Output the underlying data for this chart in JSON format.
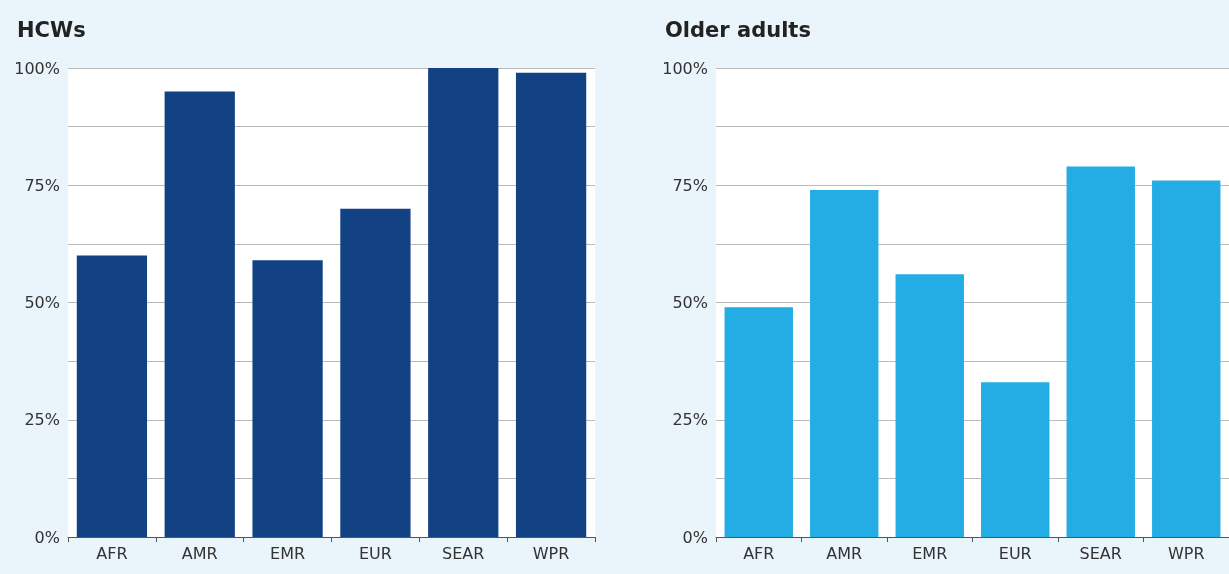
{
  "chart_data": [
    {
      "type": "bar",
      "title": "HCWs",
      "categories": [
        "AFR",
        "AMR",
        "EMR",
        "EUR",
        "SEAR",
        "WPR"
      ],
      "values": [
        60,
        95,
        59,
        70,
        100,
        99
      ],
      "color": "#124283",
      "ylim": [
        0,
        100
      ],
      "yticks": [
        {
          "value": 0,
          "label": "0%"
        },
        {
          "value": 12.5,
          "label": null
        },
        {
          "value": 25,
          "label": "25%"
        },
        {
          "value": 37.5,
          "label": null
        },
        {
          "value": 50,
          "label": "50%"
        },
        {
          "value": 62.5,
          "label": null
        },
        {
          "value": 75,
          "label": "75%"
        },
        {
          "value": 87.5,
          "label": null
        },
        {
          "value": 100,
          "label": "100%"
        }
      ],
      "grid": "y"
    },
    {
      "type": "bar",
      "title": "Older adults",
      "categories": [
        "AFR",
        "AMR",
        "EMR",
        "EUR",
        "SEAR",
        "WPR"
      ],
      "values": [
        49,
        74,
        56,
        33,
        79,
        76
      ],
      "color": "#24ace4",
      "ylim": [
        0,
        100
      ],
      "yticks": [
        {
          "value": 0,
          "label": "0%"
        },
        {
          "value": 12.5,
          "label": null
        },
        {
          "value": 25,
          "label": "25%"
        },
        {
          "value": 37.5,
          "label": null
        },
        {
          "value": 50,
          "label": "50%"
        },
        {
          "value": 62.5,
          "label": null
        },
        {
          "value": 75,
          "label": "75%"
        },
        {
          "value": 87.5,
          "label": null
        },
        {
          "value": 100,
          "label": "100%"
        }
      ],
      "grid": "y"
    }
  ]
}
